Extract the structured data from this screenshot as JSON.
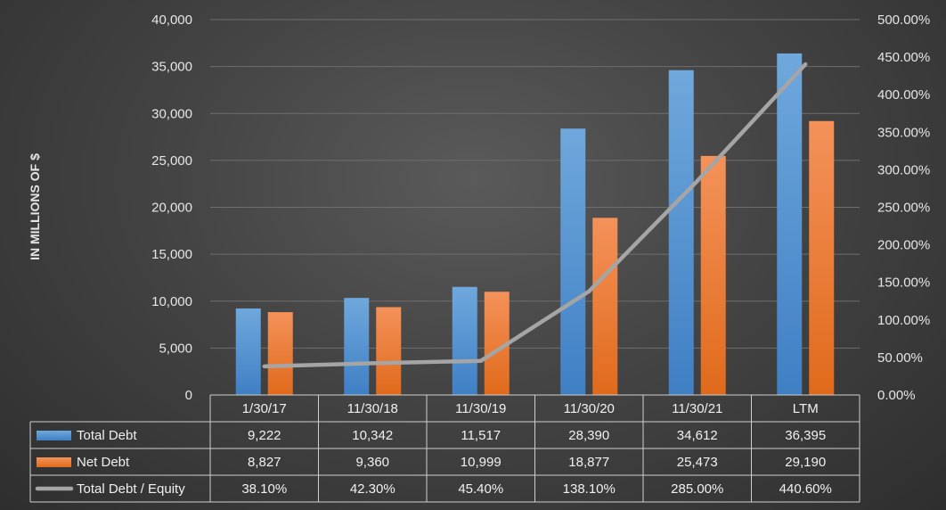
{
  "chart_data": {
    "type": "bar",
    "categories": [
      "1/30/17",
      "11/30/18",
      "11/30/19",
      "11/30/20",
      "11/30/21",
      "LTM"
    ],
    "series": [
      {
        "name": "Total Debt",
        "kind": "bar",
        "axis": "left",
        "color": "#5b9bd5",
        "values": [
          9222,
          10342,
          11517,
          28390,
          34612,
          36395
        ],
        "labels": [
          "9,222",
          "10,342",
          "11,517",
          "28,390",
          "34,612",
          "36,395"
        ]
      },
      {
        "name": "Net Debt",
        "kind": "bar",
        "axis": "left",
        "color": "#ed7d31",
        "values": [
          8827,
          9360,
          10999,
          18877,
          25473,
          29190
        ],
        "labels": [
          "8,827",
          "9,360",
          "10,999",
          "18,877",
          "25,473",
          "29,190"
        ]
      },
      {
        "name": "Total Debt / Equity",
        "kind": "line",
        "axis": "right",
        "color": "#a5a5a5",
        "values": [
          38.1,
          42.3,
          45.4,
          138.1,
          285.0,
          440.6
        ],
        "labels": [
          "38.10%",
          "42.30%",
          "45.40%",
          "138.10%",
          "285.00%",
          "440.60%"
        ]
      }
    ],
    "ylabel": "IN MILLIONS OF $",
    "ylim": [
      0,
      40000
    ],
    "y_ticks": [
      "0",
      "5,000",
      "10,000",
      "15,000",
      "20,000",
      "25,000",
      "30,000",
      "35,000",
      "40,000"
    ],
    "y2lim": [
      0,
      500
    ],
    "y2_ticks": [
      "0.00%",
      "50.00%",
      "100.00%",
      "150.00%",
      "200.00%",
      "250.00%",
      "300.00%",
      "350.00%",
      "400.00%",
      "450.00%",
      "500.00%"
    ],
    "grid": true,
    "legend": "data-table"
  }
}
